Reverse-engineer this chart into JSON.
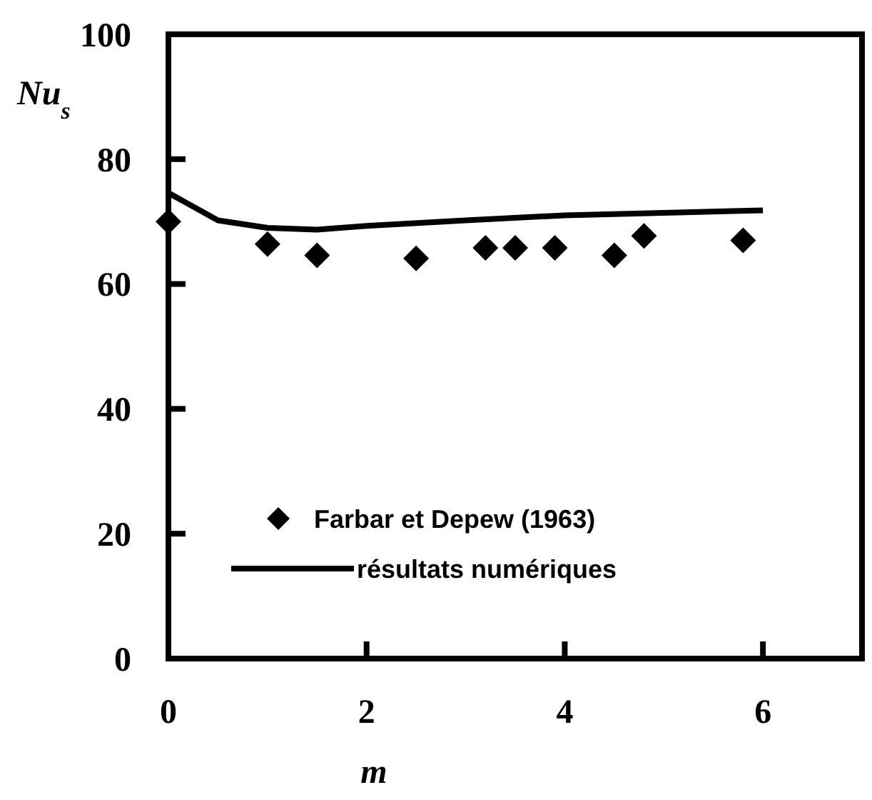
{
  "chart_data": {
    "type": "line",
    "xlabel": "m",
    "ylabel": "Nu$_{s}$",
    "xlim": [
      0,
      7
    ],
    "ylim": [
      0,
      100
    ],
    "xticks": [
      0,
      2,
      4,
      6
    ],
    "yticks": [
      0,
      20,
      40,
      60,
      80,
      100
    ],
    "legend": "bottom",
    "series": [
      {
        "name": "Farbar et Depew (1963)",
        "type": "scatter",
        "marker": "diamond",
        "color": "#000000",
        "x": [
          0,
          1,
          1.5,
          2.5,
          3.2,
          3.5,
          3.9,
          4.5,
          4.8,
          5.8
        ],
        "values": [
          70,
          66.4,
          64.6,
          64.1,
          65.8,
          65.8,
          65.8,
          64.6,
          67.7,
          67
        ]
      },
      {
        "name": "résultats numériques",
        "marker": "none",
        "line_style": "solid",
        "color": "#000000",
        "x": [
          0,
          0.5,
          1,
          1.5,
          2,
          3,
          4,
          6
        ],
        "values": [
          74.6,
          70.2,
          69,
          68.7,
          69.3,
          70.2,
          71,
          71.8
        ]
      }
    ]
  }
}
